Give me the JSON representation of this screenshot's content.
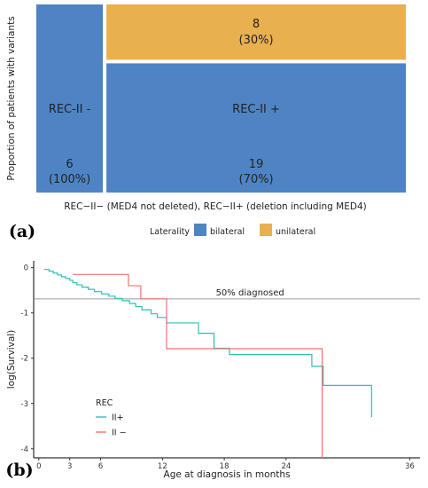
{
  "panel_labels": {
    "a": "(a)",
    "b": "(b)"
  },
  "chart_data": [
    {
      "type": "mosaic",
      "ylabel": "Proportion of patients with variants",
      "xlabel": "REC−II− (MED4 not deleted), REC−II+ (deletion including MED4)",
      "legend": {
        "title": "Laterality",
        "position": "bottom",
        "entries": [
          {
            "label": "bilateral",
            "color": "#4E84C4"
          },
          {
            "label": "unilateral",
            "color": "#E9B04F"
          }
        ]
      },
      "columns": [
        {
          "label": "REC-II -",
          "cells": [
            {
              "laterality": "bilateral",
              "count": "6",
              "percent": "(100%)",
              "fraction": 1.0
            }
          ]
        },
        {
          "label": "REC-II +",
          "cells": [
            {
              "laterality": "unilateral",
              "count": "8",
              "percent": "(30%)",
              "fraction": 0.3
            },
            {
              "laterality": "bilateral",
              "count": "19",
              "percent": "(70%)",
              "fraction": 0.7
            }
          ]
        }
      ]
    },
    {
      "type": "line",
      "step": true,
      "xlabel": "Age at diagnosis in months",
      "ylabel": "log(Survival)",
      "xlim": [
        -0.5,
        37
      ],
      "ylim": [
        -4.2,
        0.15
      ],
      "xticks": [
        0,
        3,
        6,
        12,
        18,
        24,
        36
      ],
      "yticks": [
        0,
        -1,
        -2,
        -3,
        -4
      ],
      "hline": {
        "y": -0.69,
        "label": "50% diagnosed"
      },
      "legend": {
        "title": "REC",
        "position": "bottom-left"
      },
      "series": [
        {
          "name": "II+",
          "color": "#2FBFB7",
          "points": [
            [
              0.5,
              -0.04
            ],
            [
              1.0,
              -0.08
            ],
            [
              1.4,
              -0.12
            ],
            [
              1.8,
              -0.16
            ],
            [
              2.2,
              -0.2
            ],
            [
              2.6,
              -0.24
            ],
            [
              3.0,
              -0.28
            ],
            [
              3.3,
              -0.33
            ],
            [
              3.7,
              -0.38
            ],
            [
              4.2,
              -0.43
            ],
            [
              4.8,
              -0.48
            ],
            [
              5.4,
              -0.53
            ],
            [
              6.1,
              -0.58
            ],
            [
              6.8,
              -0.63
            ],
            [
              7.4,
              -0.68
            ],
            [
              8.1,
              -0.73
            ],
            [
              8.8,
              -0.79
            ],
            [
              9.4,
              -0.86
            ],
            [
              10.0,
              -0.93
            ],
            [
              10.9,
              -1.02
            ],
            [
              11.5,
              -1.1
            ],
            [
              12.4,
              -1.22
            ],
            [
              15.5,
              -1.45
            ],
            [
              17.0,
              -1.78
            ],
            [
              18.5,
              -1.92
            ],
            [
              26.5,
              -2.18
            ],
            [
              27.6,
              -2.6
            ],
            [
              32.3,
              -3.3
            ]
          ]
        },
        {
          "name": "II −",
          "color": "#F0736A",
          "points": [
            [
              3.3,
              -0.15
            ],
            [
              8.7,
              -0.4
            ],
            [
              9.9,
              -0.69
            ],
            [
              12.4,
              -1.79
            ],
            [
              27.5,
              -4.2
            ]
          ]
        }
      ]
    }
  ]
}
